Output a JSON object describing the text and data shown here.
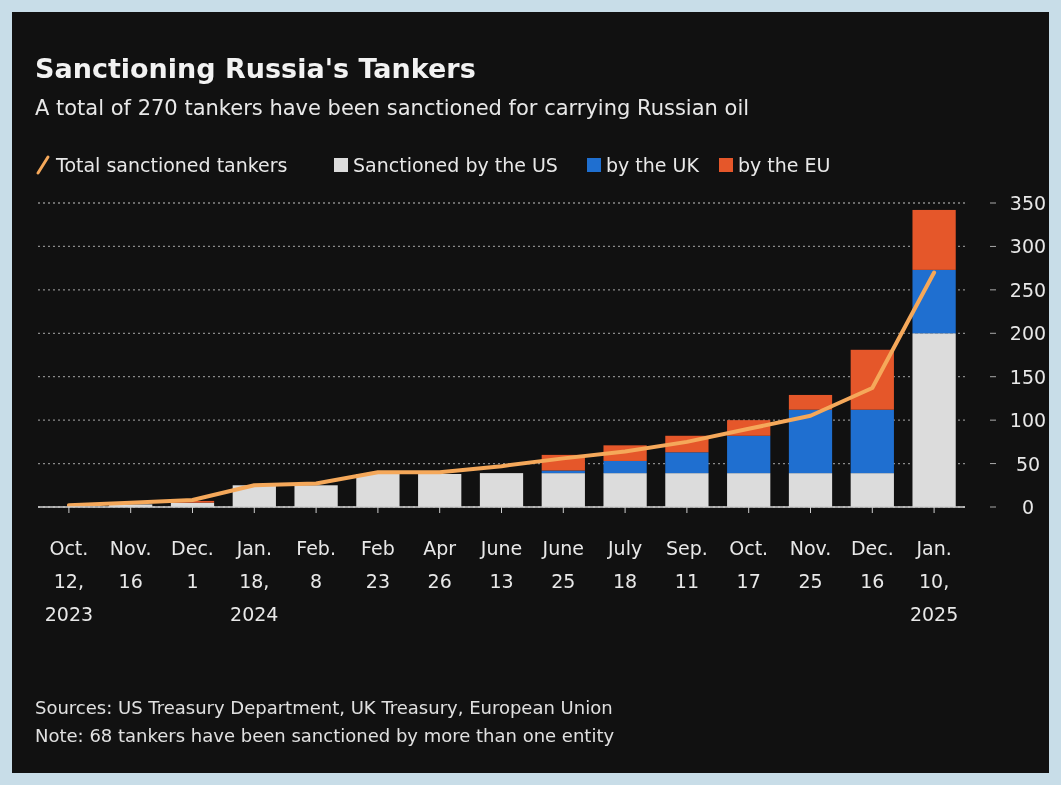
{
  "chart_data": {
    "type": "bar",
    "stacked": true,
    "title": "Sanctioning Russia's Tankers",
    "subtitle": "A total of 270 tankers have been sanctioned for carrying Russian oil",
    "categories": [
      "Oct.\n12,\n2023",
      "Nov.\n16",
      "Dec.\n1",
      "Jan.\n18,\n2024",
      "Feb.\n8",
      "Feb\n23",
      "Apr\n26",
      "June\n13",
      "June\n25",
      "July\n18",
      "Sep.\n11",
      "Oct.\n17",
      "Nov.\n25",
      "Dec.\n16",
      "Jan.\n10,\n2025"
    ],
    "series": [
      {
        "name": "Total sanctioned tankers",
        "type": "line",
        "color": "#f5a85a",
        "values": [
          2,
          5,
          8,
          25,
          27,
          40,
          40,
          47,
          56,
          64,
          75,
          90,
          105,
          137,
          270
        ]
      },
      {
        "name": "Sanctioned by the US",
        "color": "#dcdcdc",
        "values": [
          null,
          3,
          5,
          25,
          25,
          38,
          38,
          39,
          39,
          39,
          39,
          39,
          39,
          39,
          200
        ]
      },
      {
        "name": "by the UK",
        "color": "#1f6fd0",
        "values": [
          0,
          0,
          0,
          0,
          0,
          0,
          0,
          0,
          3,
          14,
          24,
          43,
          73,
          73,
          73
        ]
      },
      {
        "name": "by the EU",
        "color": "#e5572a",
        "values": [
          0,
          0,
          2,
          0,
          0,
          0,
          0,
          0,
          18,
          18,
          19,
          18,
          17,
          69,
          69
        ]
      }
    ],
    "ylim": [
      0,
      350
    ],
    "yticks": [
      0,
      50,
      100,
      150,
      200,
      250,
      300,
      350
    ],
    "grid": "y",
    "legend": "top left",
    "annotations": [
      "Sources: US Treasury Department, UK Treasury, European Union",
      "Note: 68 tankers have been sanctioned by more than one entity"
    ]
  }
}
